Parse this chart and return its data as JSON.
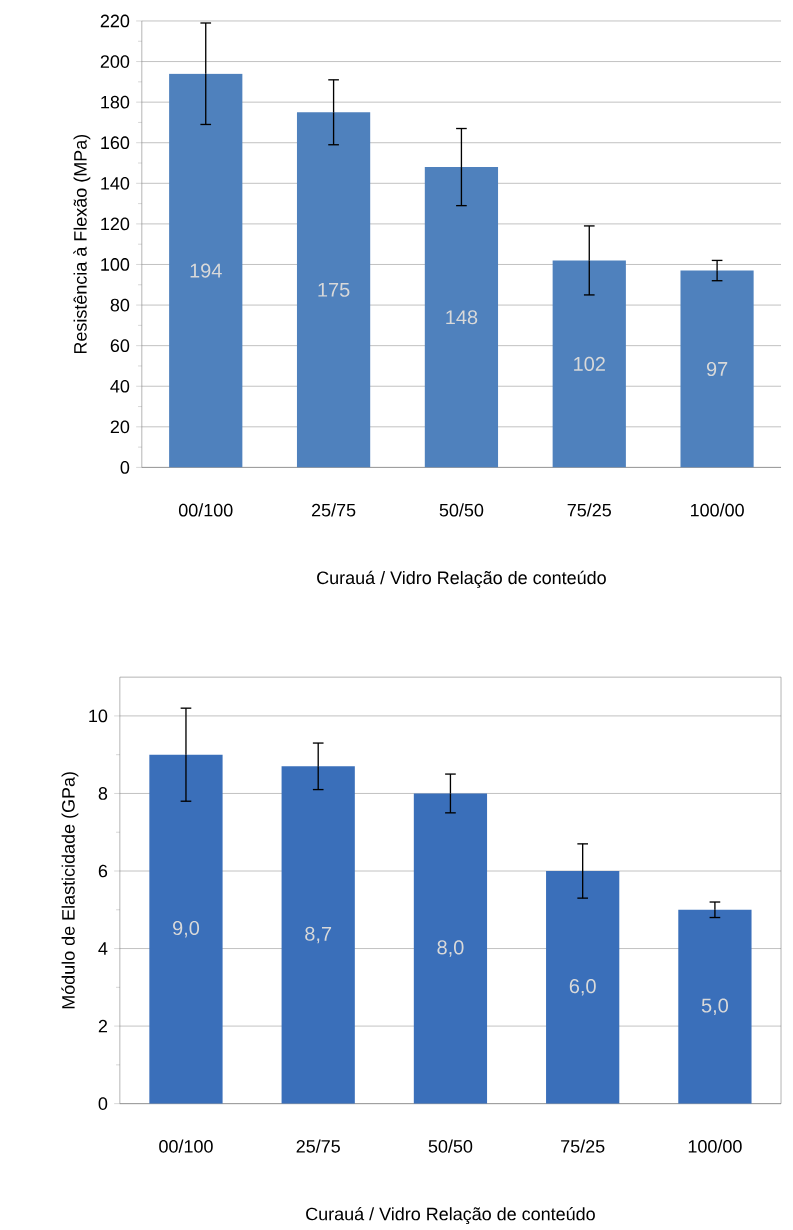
{
  "chart_data": [
    {
      "type": "bar",
      "ylabel": "Resistência à Flexão (MPa)",
      "xlabel": "Curauá / Vidro   Relação de conteúdo",
      "categories": [
        "00/100",
        "25/75",
        "50/50",
        "75/25",
        "100/00"
      ],
      "values": [
        194,
        175,
        148,
        102,
        97
      ],
      "errors": [
        25,
        16,
        19,
        17,
        5
      ],
      "color": "#4f81bd",
      "data_labels": true,
      "ylim": [
        0,
        220
      ],
      "yticks": [
        0,
        20,
        40,
        60,
        80,
        100,
        120,
        140,
        160,
        180,
        200,
        220
      ],
      "grid": "y"
    },
    {
      "type": "bar",
      "ylabel": "Módulo de Elasticidade (GPa)",
      "xlabel": "Curauá / Vidro   Relação de conteúdo",
      "categories": [
        "00/100",
        "25/75",
        "50/50",
        "75/25",
        "100/00"
      ],
      "values": [
        9.0,
        8.7,
        8.0,
        6.0,
        5.0
      ],
      "errors": [
        1.2,
        0.6,
        0.5,
        0.7,
        0.2
      ],
      "color": "#3a6fba",
      "value_labels": [
        "9,0",
        "8,7",
        "8,0",
        "6,0",
        "5,0"
      ],
      "ylim": [
        0,
        11
      ],
      "yticks": [
        0,
        2,
        4,
        6,
        8,
        10
      ],
      "grid": "y"
    }
  ]
}
